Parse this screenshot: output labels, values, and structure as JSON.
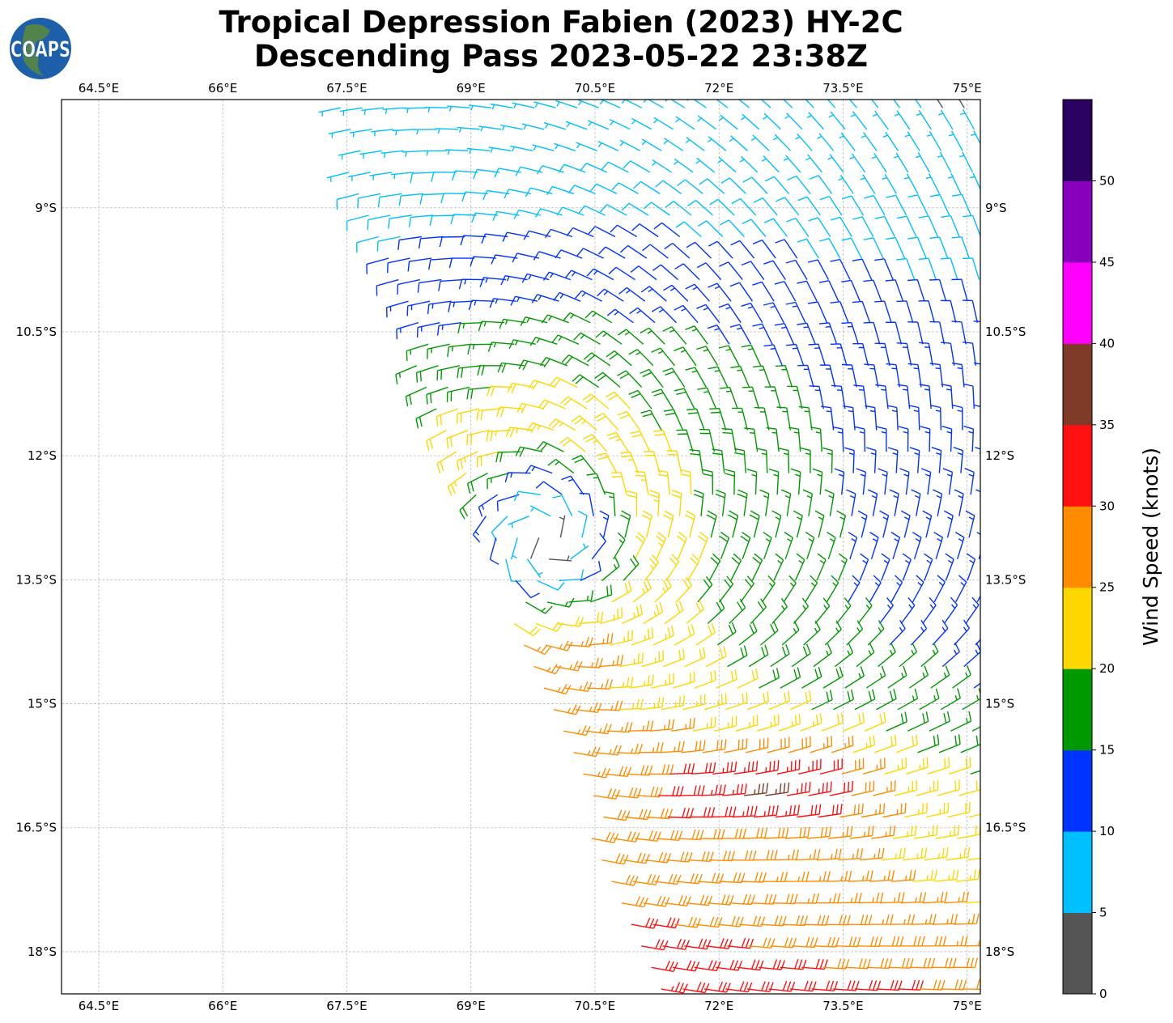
{
  "header": {
    "title_line1": "Tropical Depression Fabien (2023) HY-2C",
    "title_line2": "Descending Pass 2023-05-22 23:38Z",
    "logo_text": "COAPS"
  },
  "chart_data": {
    "type": "wind-barb-map",
    "title": "Tropical Depression Fabien (2023) HY-2C Descending Pass 2023-05-22 23:38Z",
    "xlim": [
      64.05,
      75.16
    ],
    "ylim": [
      -18.51,
      -7.69
    ],
    "grid": true,
    "x_ticks": [
      64.5,
      66,
      67.5,
      69,
      70.5,
      72,
      73.5,
      75
    ],
    "x_tick_labels": [
      "64.5°E",
      "66°E",
      "67.5°E",
      "69°E",
      "70.5°E",
      "72°E",
      "73.5°E",
      "75°E"
    ],
    "y_ticks": [
      -9,
      -10.5,
      -12,
      -13.5,
      -15,
      -16.5,
      -18
    ],
    "y_tick_labels": [
      "9°S",
      "10.5°S",
      "12°S",
      "13.5°S",
      "15°S",
      "16.5°S",
      "18°S"
    ],
    "colorbar": {
      "label": "Wind Speed (knots)",
      "range": [
        0,
        55
      ],
      "bounds": [
        0,
        5,
        10,
        15,
        20,
        25,
        30,
        35,
        40,
        45,
        50,
        55
      ],
      "colors": [
        "#555555",
        "#00bfff",
        "#0033ff",
        "#009900",
        "#ffd700",
        "#ff8c00",
        "#ff1010",
        "#7f3b27",
        "#ff00ff",
        "#8800bb",
        "#2a0060"
      ],
      "ticks": [
        0,
        5,
        10,
        15,
        20,
        25,
        30,
        35,
        40,
        45,
        50
      ],
      "tick_labels": [
        "0",
        "5",
        "10",
        "15",
        "20",
        "25",
        "30",
        "35",
        "40",
        "45",
        "50"
      ]
    },
    "swath_left_edge": [
      [
        -7.69,
        67.2
      ],
      [
        -12,
        68.7
      ],
      [
        -13.5,
        69.3
      ],
      [
        -15,
        69.9
      ],
      [
        -18.51,
        71.1
      ]
    ],
    "vortex": {
      "center_lon": 69.9,
      "center_lat": -13.0,
      "max_wind_kt": 23,
      "rmw_deg": 1.3
    },
    "max_wind_region": {
      "lon": 72.7,
      "lat": -16.0,
      "peak_kt": 32
    },
    "grid_spacing_deg": 0.26
  }
}
